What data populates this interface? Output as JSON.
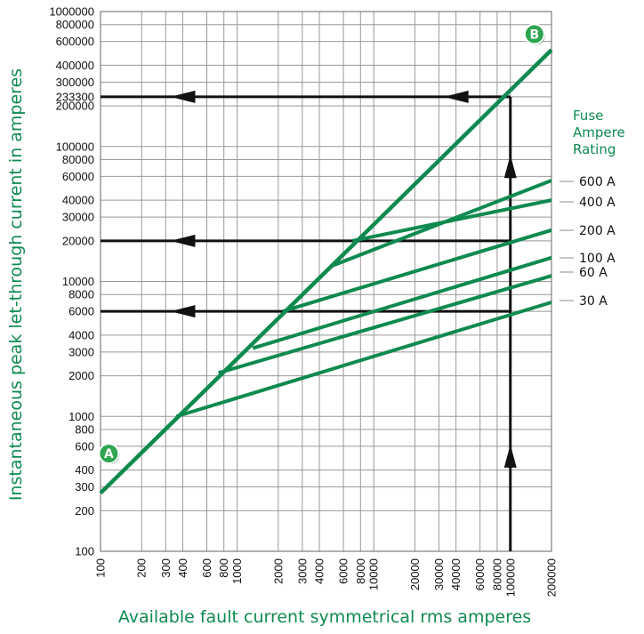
{
  "chart_data": {
    "type": "line",
    "xscale": "log",
    "yscale": "log",
    "xlim": [
      100,
      200000
    ],
    "ylim": [
      100,
      1000000
    ],
    "xlabel": "Available fault current symmetrical rms amperes",
    "ylabel": "Instantaneous peak let-through current in amperes",
    "x_ticks": [
      100,
      200,
      300,
      400,
      600,
      800,
      1000,
      2000,
      3000,
      4000,
      6000,
      8000,
      10000,
      20000,
      30000,
      40000,
      60000,
      80000,
      100000,
      200000
    ],
    "y_ticks": [
      100,
      200,
      300,
      400,
      600,
      800,
      1000,
      2000,
      3000,
      4000,
      6000,
      8000,
      10000,
      20000,
      30000,
      40000,
      60000,
      80000,
      100000,
      200000,
      233300,
      300000,
      400000,
      600000,
      800000,
      1000000
    ],
    "grid": true,
    "legend_title": "Fuse Ampere Rating",
    "legend_position": "right",
    "colors": {
      "series": "#0f8a4f",
      "guide": "#111111",
      "grid": "#999999"
    },
    "diagonal_line": {
      "from": [
        100,
        270
      ],
      "to": [
        200000,
        520000
      ]
    },
    "series": [
      {
        "name": "600 A",
        "x": [
          4900,
          200000
        ],
        "y": [
          13000,
          56000
        ]
      },
      {
        "name": "400 A",
        "x": [
          7000,
          200000
        ],
        "y": [
          20000,
          40000
        ]
      },
      {
        "name": "200 A",
        "x": [
          2150,
          200000
        ],
        "y": [
          6000,
          24000
        ]
      },
      {
        "name": "100 A",
        "x": [
          1300,
          200000
        ],
        "y": [
          3200,
          15000
        ]
      },
      {
        "name": "60 A",
        "x": [
          730,
          200000
        ],
        "y": [
          2100,
          11000
        ]
      },
      {
        "name": "30 A",
        "x": [
          360,
          200000
        ],
        "y": [
          1000,
          7000
        ]
      }
    ],
    "guide_lines": [
      {
        "from": [
          100000,
          100
        ],
        "to": [
          100000,
          233300
        ],
        "arrows_up_at_y": [
          500,
          70000
        ]
      },
      {
        "from": [
          100000,
          233300
        ],
        "to": [
          100,
          233300
        ],
        "arrows_left_at_x": [
          40000,
          400
        ]
      },
      {
        "from": [
          100000,
          20000
        ],
        "to": [
          100,
          20000
        ],
        "arrows_left_at_x": [
          400
        ]
      },
      {
        "from": [
          100000,
          6000
        ],
        "to": [
          100,
          6000
        ],
        "arrows_left_at_x": [
          400
        ]
      }
    ],
    "markers": [
      {
        "label": "A",
        "x": 115,
        "y": 530
      },
      {
        "label": "B",
        "x": 150000,
        "y": 680000
      }
    ]
  }
}
